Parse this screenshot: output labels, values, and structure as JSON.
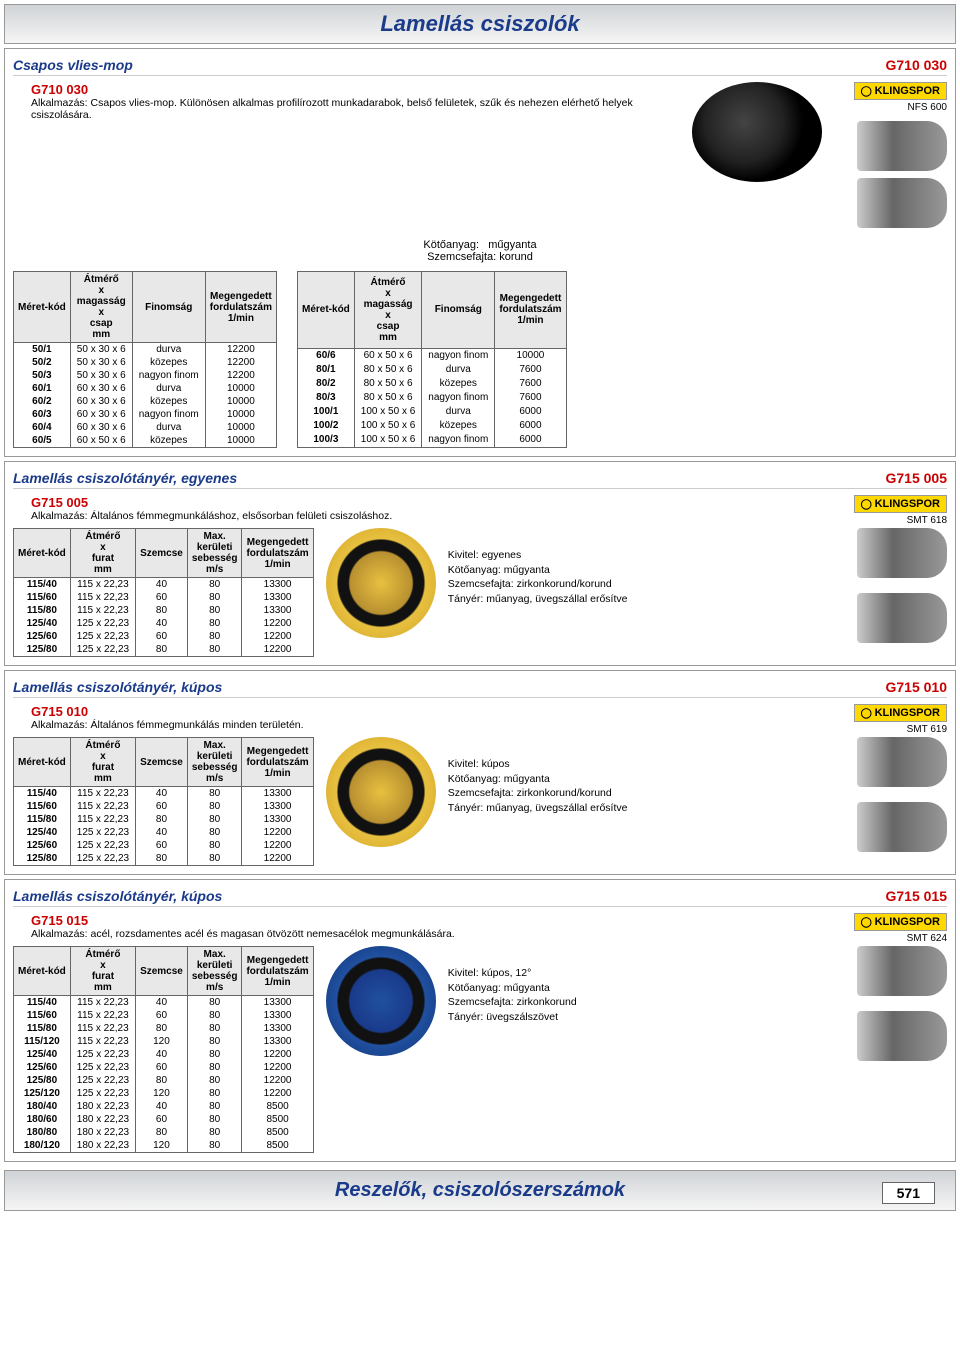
{
  "page_title": "Lamellás csiszolók",
  "footer_title": "Reszelők, csiszolószerszámok",
  "page_number": "571",
  "brand": "KLINGSPOR",
  "s1": {
    "title": "Csapos vlies-mop",
    "code": "G710 030",
    "prod": "G710 030",
    "brand_sub": "NFS 600",
    "desc": "Alkalmazás: Csapos vlies-mop. Különösen alkalmas profilírozott munkadarabok, belső felületek, szűk és nehezen elérhető helyek csiszolására.",
    "meta1": "Kötőanyag:",
    "meta1v": "műgyanta",
    "meta2": "Szemcsefajta:",
    "meta2v": "korund",
    "hdr": [
      "Méret-kód",
      "Átmérő x magasság x csap mm",
      "Finomság",
      "Megengedett fordulatszám 1/min"
    ],
    "left": [
      [
        "50/1",
        "50 x 30 x 6",
        "durva",
        "12200"
      ],
      [
        "50/2",
        "50 x 30 x 6",
        "közepes",
        "12200"
      ],
      [
        "50/3",
        "50 x 30 x 6",
        "nagyon finom",
        "12200"
      ],
      [
        "60/1",
        "60 x 30 x 6",
        "durva",
        "10000"
      ],
      [
        "60/2",
        "60 x 30 x 6",
        "közepes",
        "10000"
      ],
      [
        "60/3",
        "60 x 30 x 6",
        "nagyon finom",
        "10000"
      ],
      [
        "60/4",
        "60 x 30 x 6",
        "durva",
        "10000"
      ],
      [
        "60/5",
        "60 x 50 x 6",
        "közepes",
        "10000"
      ]
    ],
    "right": [
      [
        "60/6",
        "60 x 50 x 6",
        "nagyon finom",
        "10000"
      ],
      [
        "80/1",
        "80 x 50 x 6",
        "durva",
        "7600"
      ],
      [
        "80/2",
        "80 x 50 x 6",
        "közepes",
        "7600"
      ],
      [
        "80/3",
        "80 x 50 x 6",
        "nagyon finom",
        "7600"
      ],
      [
        "100/1",
        "100 x 50 x 6",
        "durva",
        "6000"
      ],
      [
        "100/2",
        "100 x 50 x 6",
        "közepes",
        "6000"
      ],
      [
        "100/3",
        "100 x 50 x 6",
        "nagyon finom",
        "6000"
      ]
    ]
  },
  "s2": {
    "title": "Lamellás csiszolótányér, egyenes",
    "code": "G715 005",
    "prod": "G715 005",
    "brand_sub": "SMT 618",
    "desc": "Alkalmazás: Általános fémmegmunkáláshoz, elsősorban felületi csiszoláshoz.",
    "hdr": [
      "Méret-kód",
      "Átmérő x furat mm",
      "Szemcse",
      "Max. kerületi sebesség m/s",
      "Megengedett fordulatszám 1/min"
    ],
    "rows": [
      [
        "115/40",
        "115 x 22,23",
        "40",
        "80",
        "13300"
      ],
      [
        "115/60",
        "115 x 22,23",
        "60",
        "80",
        "13300"
      ],
      [
        "115/80",
        "115 x 22,23",
        "80",
        "80",
        "13300"
      ],
      [
        "125/40",
        "125 x 22,23",
        "40",
        "80",
        "12200"
      ],
      [
        "125/60",
        "125 x 22,23",
        "60",
        "80",
        "12200"
      ],
      [
        "125/80",
        "125 x 22,23",
        "80",
        "80",
        "12200"
      ]
    ],
    "info": [
      [
        "Kivitel:",
        "egyenes"
      ],
      [
        "Kötőanyag:",
        "műgyanta"
      ],
      [
        "Szemcsefajta:",
        "zirkonkorund/korund"
      ],
      [
        "Tányér:",
        "műanyag, üvegszállal erősítve"
      ]
    ]
  },
  "s3": {
    "title": "Lamellás csiszolótányér, kúpos",
    "code": "G715 010",
    "prod": "G715 010",
    "brand_sub": "SMT 619",
    "desc": "Alkalmazás: Általános fémmegmunkálás minden területén.",
    "hdr": [
      "Méret-kód",
      "Átmérő x furat mm",
      "Szemcse",
      "Max. kerületi sebesség m/s",
      "Megengedett fordulatszám 1/min"
    ],
    "rows": [
      [
        "115/40",
        "115 x 22,23",
        "40",
        "80",
        "13300"
      ],
      [
        "115/60",
        "115 x 22,23",
        "60",
        "80",
        "13300"
      ],
      [
        "115/80",
        "115 x 22,23",
        "80",
        "80",
        "13300"
      ],
      [
        "125/40",
        "125 x 22,23",
        "40",
        "80",
        "12200"
      ],
      [
        "125/60",
        "125 x 22,23",
        "60",
        "80",
        "12200"
      ],
      [
        "125/80",
        "125 x 22,23",
        "80",
        "80",
        "12200"
      ]
    ],
    "info": [
      [
        "Kivitel:",
        "kúpos"
      ],
      [
        "Kötőanyag:",
        "műgyanta"
      ],
      [
        "Szemcsefajta:",
        "zirkonkorund/korund"
      ],
      [
        "Tányér:",
        "műanyag, üvegszállal erősítve"
      ]
    ]
  },
  "s4": {
    "title": "Lamellás csiszolótányér, kúpos",
    "code": "G715 015",
    "prod": "G715 015",
    "brand_sub": "SMT 624",
    "desc": "Alkalmazás: acél, rozsdamentes acél és magasan ötvözött nemesacélok megmunkálására.",
    "hdr": [
      "Méret-kód",
      "Átmérő x furat mm",
      "Szemcse",
      "Max. kerületi sebesség m/s",
      "Megengedett fordulatszám 1/min"
    ],
    "rows": [
      [
        "115/40",
        "115 x 22,23",
        "40",
        "80",
        "13300"
      ],
      [
        "115/60",
        "115 x 22,23",
        "60",
        "80",
        "13300"
      ],
      [
        "115/80",
        "115 x 22,23",
        "80",
        "80",
        "13300"
      ],
      [
        "115/120",
        "115 x 22,23",
        "120",
        "80",
        "13300"
      ],
      [
        "125/40",
        "125 x 22,23",
        "40",
        "80",
        "12200"
      ],
      [
        "125/60",
        "125 x 22,23",
        "60",
        "80",
        "12200"
      ],
      [
        "125/80",
        "125 x 22,23",
        "80",
        "80",
        "12200"
      ],
      [
        "125/120",
        "125 x 22,23",
        "120",
        "80",
        "12200"
      ],
      [
        "180/40",
        "180 x 22,23",
        "40",
        "80",
        "8500"
      ],
      [
        "180/60",
        "180 x 22,23",
        "60",
        "80",
        "8500"
      ],
      [
        "180/80",
        "180 x 22,23",
        "80",
        "80",
        "8500"
      ],
      [
        "180/120",
        "180 x 22,23",
        "120",
        "80",
        "8500"
      ]
    ],
    "info": [
      [
        "Kivitel:",
        "kúpos, 12°"
      ],
      [
        "Kötőanyag:",
        "műgyanta"
      ],
      [
        "Szemcsefajta:",
        "zirkonkorund"
      ],
      [
        "Tányér:",
        "üvegszálszövet"
      ]
    ]
  }
}
